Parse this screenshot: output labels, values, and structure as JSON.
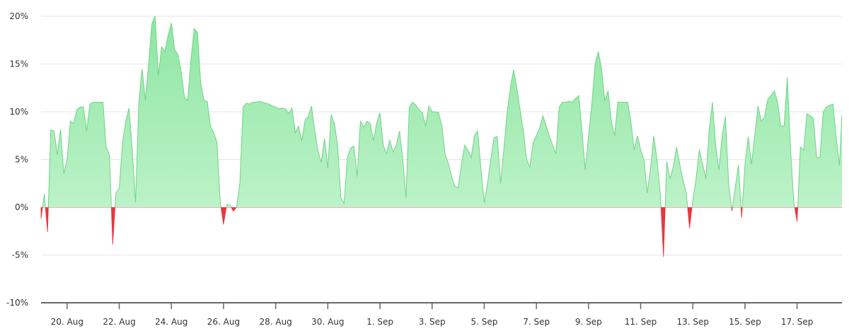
{
  "chart_data": {
    "type": "area",
    "title": "",
    "xlabel": "",
    "ylabel": "",
    "ylim": [
      -10,
      20
    ],
    "grid": true,
    "legend": "none",
    "y_ticks": [
      {
        "value": 20,
        "label": "20%"
      },
      {
        "value": 15,
        "label": "15%"
      },
      {
        "value": 10,
        "label": "10%"
      },
      {
        "value": 5,
        "label": "5%"
      },
      {
        "value": 0,
        "label": "0%"
      },
      {
        "value": -5,
        "label": "-5%"
      },
      {
        "value": -10,
        "label": "-10%"
      }
    ],
    "x_ticks": [
      "20. Aug",
      "22. Aug",
      "24. Aug",
      "26. Aug",
      "28. Aug",
      "30. Aug",
      "1. Sep",
      "3. Sep",
      "5. Sep",
      "7. Sep",
      "9. Sep",
      "11. Sep",
      "13. Sep",
      "15. Sep",
      "17. Sep"
    ],
    "colors": {
      "positive_top": "#8ee6a2",
      "positive_bottom": "#c8f5d2",
      "positive_line": "#6fd488",
      "negative": "#e8363f",
      "grid": "#e6e6e6",
      "axis": "#666666"
    },
    "interval_hours": 3,
    "series": {
      "19 Aug": [
        -1.2,
        1.4,
        -2.6,
        8.1,
        8.0,
        5.5,
        8.2,
        3.5
      ],
      "20 Aug": [
        5.0,
        9.0,
        8.8,
        10.2,
        10.5,
        10.5,
        8.0,
        10.8
      ],
      "21 Aug": [
        11.0,
        11.0,
        11.0,
        11.0,
        6.3,
        5.5,
        -3.9,
        1.5
      ],
      "22 Aug": [
        2.0,
        6.8,
        9.0,
        10.4,
        6.0,
        0.5,
        11.0,
        14.5
      ],
      "23 Aug": [
        11.2,
        15.0,
        19.2,
        20.0,
        13.8,
        16.8,
        16.3,
        18.0
      ],
      "24 Aug": [
        19.3,
        16.5,
        16.0,
        14.2,
        11.5,
        11.2,
        15.5,
        18.7
      ],
      "25 Aug": [
        18.3,
        13.0,
        11.2,
        11.1,
        8.5,
        7.8,
        6.8,
        0.5
      ],
      "26 Aug": [
        -1.8,
        0.3,
        0.2,
        -0.4,
        0.0,
        2.5,
        10.5,
        10.9
      ],
      "27 Aug": [
        10.8,
        11.0,
        11.0,
        11.1,
        11.0,
        10.9,
        10.8,
        10.6
      ],
      "28 Aug": [
        10.5,
        10.3,
        10.4,
        10.3,
        9.8,
        10.4,
        7.8,
        8.5
      ],
      "29 Aug": [
        6.9,
        9.1,
        9.5,
        10.6,
        8.0,
        5.9,
        4.7,
        7.2
      ],
      "30 Aug": [
        4.1,
        9.7,
        8.8,
        6.5,
        1.0,
        0.4,
        5.2,
        6.2
      ],
      "31 Aug": [
        6.4,
        3.2,
        9.0,
        8.4,
        9.0,
        8.8,
        7.0,
        8.8
      ],
      "1 Sep": [
        9.9,
        6.5,
        5.6,
        7.0,
        5.8,
        6.5,
        8.0,
        5.0
      ],
      "2 Sep": [
        1.0,
        10.5,
        11.0,
        10.7,
        10.2,
        9.9,
        8.5,
        10.6
      ],
      "3 Sep": [
        10.0,
        10.0,
        9.9,
        8.5,
        5.5,
        4.6,
        3.2,
        2.2
      ],
      "4 Sep": [
        2.0,
        4.5,
        6.5,
        6.0,
        5.2,
        7.5,
        8.0,
        4.0
      ],
      "5 Sep": [
        0.5,
        2.5,
        5.0,
        7.3,
        7.4,
        2.5,
        6.0,
        9.9
      ],
      "6 Sep": [
        12.5,
        14.4,
        12.5,
        10.2,
        8.0,
        5.0,
        4.2,
        6.8
      ],
      "7 Sep": [
        7.5,
        8.3,
        9.6,
        8.5,
        7.4,
        6.5,
        5.6,
        10.5
      ],
      "8 Sep": [
        11.0,
        11.0,
        11.1,
        11.0,
        11.4,
        11.7,
        8.0,
        3.9
      ],
      "9 Sep": [
        7.5,
        10.8,
        15.0,
        16.3,
        14.5,
        11.1,
        12.2,
        9.0
      ],
      "10 Sep": [
        7.5,
        11.0,
        11.0,
        11.0,
        11.0,
        9.0,
        6.0,
        7.5
      ],
      "11 Sep": [
        6.0,
        5.0,
        1.5,
        4.0,
        7.5,
        5.0,
        1.5,
        -5.2
      ],
      "12 Sep": [
        4.8,
        3.0,
        4.2,
        6.3,
        4.5,
        2.8,
        1.5,
        -2.2
      ],
      "13 Sep": [
        0.8,
        3.0,
        6.0,
        4.5,
        3.0,
        8.0,
        11.0,
        6.5
      ],
      "14 Sep": [
        3.9,
        7.5,
        9.5,
        2.5,
        -0.4,
        2.0,
        4.4,
        -1.1
      ],
      "15 Sep": [
        4.5,
        7.4,
        4.5,
        7.5,
        10.6,
        9.0,
        9.5,
        11.3
      ],
      "16 Sep": [
        11.7,
        12.2,
        11.0,
        8.5,
        8.5,
        13.6,
        6.0,
        0.5
      ],
      "17 Sep": [
        -1.5,
        6.3,
        6.0,
        9.8,
        9.6,
        9.3,
        5.2,
        5.2
      ],
      "18 Sep": [
        10.0,
        10.5,
        10.7,
        10.8,
        7.3,
        4.4,
        9.6
      ]
    }
  }
}
